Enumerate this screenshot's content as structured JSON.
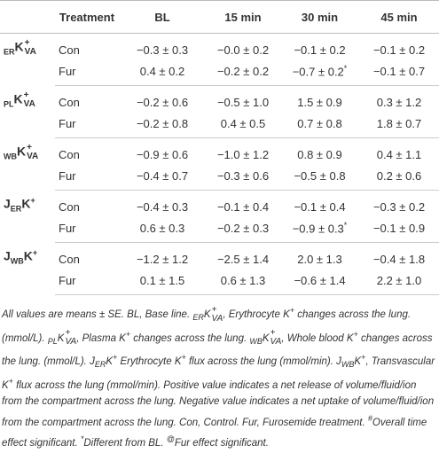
{
  "table": {
    "header": [
      "Treatment",
      "BL",
      "15 min",
      "30 min",
      "45 min"
    ],
    "groups": [
      {
        "label": [
          {
            "t": "ER",
            "s": "sub"
          },
          {
            "t": "K",
            "s": "n"
          },
          {
            "sup": "+",
            "sub": "VA"
          }
        ],
        "rows": [
          {
            "treatment": "Con",
            "cells": [
              {
                "text": "−0.3 ± 0.3"
              },
              {
                "text": "−0.0 ± 0.2"
              },
              {
                "text": "−0.1 ± 0.2"
              },
              {
                "text": "−0.1 ± 0.2"
              }
            ]
          },
          {
            "treatment": "Fur",
            "cells": [
              {
                "text": "0.4 ± 0.2"
              },
              {
                "text": "−0.2 ± 0.2"
              },
              {
                "text": "−0.7 ± 0.2",
                "note": "*"
              },
              {
                "text": "−0.1 ± 0.7"
              }
            ]
          }
        ]
      },
      {
        "label": [
          {
            "t": "PL",
            "s": "sub"
          },
          {
            "t": "K",
            "s": "n"
          },
          {
            "sup": "+",
            "sub": "VA"
          }
        ],
        "rows": [
          {
            "treatment": "Con",
            "cells": [
              {
                "text": "−0.2 ± 0.6"
              },
              {
                "text": "−0.5 ± 1.0"
              },
              {
                "text": "1.5 ± 0.9"
              },
              {
                "text": "0.3 ± 1.2"
              }
            ]
          },
          {
            "treatment": "Fur",
            "cells": [
              {
                "text": "−0.2 ± 0.8"
              },
              {
                "text": "0.4 ± 0.5"
              },
              {
                "text": "0.7 ± 0.8"
              },
              {
                "text": "1.8 ± 0.7"
              }
            ]
          }
        ]
      },
      {
        "label": [
          {
            "t": "WB",
            "s": "sub"
          },
          {
            "t": "K",
            "s": "n"
          },
          {
            "sup": "+",
            "sub": "VA"
          }
        ],
        "rows": [
          {
            "treatment": "Con",
            "cells": [
              {
                "text": "−0.9 ± 0.6"
              },
              {
                "text": "−1.0 ± 1.2"
              },
              {
                "text": "0.8 ± 0.9"
              },
              {
                "text": "0.4 ± 1.1"
              }
            ]
          },
          {
            "treatment": "Fur",
            "cells": [
              {
                "text": "−0.4 ± 0.7"
              },
              {
                "text": "−0.3 ± 0.6"
              },
              {
                "text": "−0.5 ± 0.8"
              },
              {
                "text": "0.2 ± 0.6"
              }
            ]
          }
        ]
      },
      {
        "label": [
          {
            "t": "J",
            "s": "n"
          },
          {
            "t": "ER",
            "s": "sub"
          },
          {
            "t": "K",
            "s": "n"
          },
          {
            "t": "+",
            "s": "sup"
          }
        ],
        "rows": [
          {
            "treatment": "Con",
            "cells": [
              {
                "text": "−0.4 ± 0.3"
              },
              {
                "text": "−0.1 ± 0.4"
              },
              {
                "text": "−0.1 ± 0.4"
              },
              {
                "text": "−0.3 ± 0.2"
              }
            ]
          },
          {
            "treatment": "Fur",
            "cells": [
              {
                "text": "0.6 ± 0.3"
              },
              {
                "text": "−0.2 ± 0.3"
              },
              {
                "text": "−0.9 ± 0.3",
                "note": "*"
              },
              {
                "text": "−0.1 ± 0.9"
              }
            ]
          }
        ]
      },
      {
        "label": [
          {
            "t": "J",
            "s": "n"
          },
          {
            "t": "WB",
            "s": "sub"
          },
          {
            "t": "K",
            "s": "n"
          },
          {
            "t": "+",
            "s": "sup"
          }
        ],
        "rows": [
          {
            "treatment": "Con",
            "cells": [
              {
                "text": "−1.2 ± 1.2"
              },
              {
                "text": "−2.5 ± 1.4"
              },
              {
                "text": "2.0 ± 1.3"
              },
              {
                "text": "−0.4 ± 1.8"
              }
            ]
          },
          {
            "treatment": "Fur",
            "cells": [
              {
                "text": "0.1 ± 1.5"
              },
              {
                "text": "0.6 ± 1.3"
              },
              {
                "text": "−0.6 ± 1.4"
              },
              {
                "text": "2.2 ± 1.0"
              }
            ]
          }
        ]
      }
    ]
  },
  "footnote": [
    {
      "t": "All values are means ± SE. BL, Base line. ",
      "s": "n"
    },
    {
      "t": "ER",
      "s": "sub"
    },
    {
      "t": "K",
      "s": "n"
    },
    {
      "sup": "+",
      "sub": "VA"
    },
    {
      "t": ", Erythrocyte K",
      "s": "n"
    },
    {
      "t": "+",
      "s": "sup"
    },
    {
      "t": " changes across the lung. (mmol/L). ",
      "s": "n"
    },
    {
      "t": "PL",
      "s": "sub"
    },
    {
      "t": "K",
      "s": "n"
    },
    {
      "sup": "+",
      "sub": "VA"
    },
    {
      "t": ", Plasma K",
      "s": "n"
    },
    {
      "t": "+",
      "s": "sup"
    },
    {
      "t": " changes across the lung. ",
      "s": "n"
    },
    {
      "t": "WB",
      "s": "sub"
    },
    {
      "t": "K",
      "s": "n"
    },
    {
      "sup": "+",
      "sub": "VA"
    },
    {
      "t": ", Whole blood K",
      "s": "n"
    },
    {
      "t": "+",
      "s": "sup"
    },
    {
      "t": " changes across the lung. (mmol/L). J",
      "s": "n"
    },
    {
      "t": "ER",
      "s": "sub"
    },
    {
      "t": "K",
      "s": "n"
    },
    {
      "t": "+",
      "s": "sup"
    },
    {
      "t": " Erythrocyte K",
      "s": "n"
    },
    {
      "t": "+",
      "s": "sup"
    },
    {
      "t": " flux across the lung (mmol/min). J",
      "s": "n"
    },
    {
      "t": "WB",
      "s": "sub"
    },
    {
      "t": "K",
      "s": "n"
    },
    {
      "t": "+",
      "s": "sup"
    },
    {
      "t": ", Transvascular K",
      "s": "n"
    },
    {
      "t": "+",
      "s": "sup"
    },
    {
      "t": " flux across the lung (mmol/min). Positive value indicates a net release of volume/fluid/ion from the compartment across the lung. Negative value indicates a net uptake of volume/fluid/ion from the compartment across the lung. Con, Control. Fur, Furosemide treatment. ",
      "s": "n"
    },
    {
      "t": "#",
      "s": "sup"
    },
    {
      "t": "Overall time effect significant. ",
      "s": "n"
    },
    {
      "t": "*",
      "s": "sup"
    },
    {
      "t": "Different from BL. ",
      "s": "n"
    },
    {
      "t": "@",
      "s": "sup"
    },
    {
      "t": "Fur effect significant.",
      "s": "n"
    }
  ]
}
